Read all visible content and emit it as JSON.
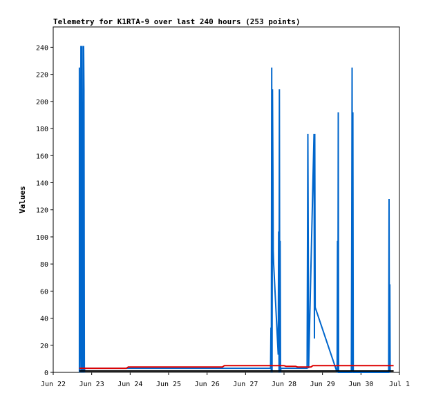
{
  "chart_data": {
    "type": "line",
    "title": "Telemetry for K1RTA-9 over last 240 hours (253 points)",
    "xlabel": "",
    "ylabel": "Values",
    "xlim": [
      "Jun 22",
      "Jul 1"
    ],
    "ylim": [
      0,
      255
    ],
    "grid": false,
    "legend": "none",
    "x_ticks": [
      "Jun 22",
      "Jun 23",
      "Jun 24",
      "Jun 25",
      "Jun 26",
      "Jun 27",
      "Jun 28",
      "Jun 29",
      "Jun 30",
      "Jul 1"
    ],
    "x_tick_days": [
      0,
      1,
      2,
      3,
      4,
      5,
      6,
      7,
      8,
      9
    ],
    "y_ticks": [
      0,
      20,
      40,
      60,
      80,
      100,
      120,
      140,
      160,
      180,
      200,
      220,
      240
    ],
    "series": [
      {
        "color": "#0066cc",
        "points": [
          [
            0.68,
            0
          ],
          [
            0.68,
            225
          ],
          [
            0.69,
            0
          ],
          [
            0.71,
            65
          ],
          [
            0.72,
            241
          ],
          [
            0.73,
            0
          ],
          [
            0.75,
            241
          ],
          [
            0.76,
            0
          ],
          [
            0.77,
            113
          ],
          [
            0.78,
            0
          ],
          [
            0.79,
            241
          ],
          [
            0.8,
            208
          ],
          [
            0.81,
            0
          ],
          [
            0.82,
            3
          ],
          [
            5.65,
            3
          ],
          [
            5.66,
            33
          ],
          [
            5.67,
            0
          ],
          [
            5.68,
            225
          ],
          [
            5.69,
            0
          ],
          [
            5.7,
            209
          ],
          [
            5.71,
            152
          ],
          [
            5.72,
            90
          ],
          [
            5.73,
            80
          ],
          [
            5.85,
            13
          ],
          [
            5.86,
            104
          ],
          [
            5.87,
            0
          ],
          [
            5.88,
            209
          ],
          [
            5.89,
            0
          ],
          [
            5.9,
            97
          ],
          [
            5.91,
            0
          ],
          [
            5.92,
            3
          ],
          [
            6.6,
            3
          ],
          [
            6.62,
            176
          ],
          [
            6.63,
            90
          ],
          [
            6.64,
            3
          ],
          [
            6.78,
            176
          ],
          [
            6.79,
            25
          ],
          [
            6.8,
            176
          ],
          [
            6.81,
            48
          ],
          [
            7.38,
            0
          ],
          [
            7.39,
            97
          ],
          [
            7.4,
            0
          ],
          [
            7.41,
            192
          ],
          [
            7.42,
            0
          ],
          [
            7.75,
            0
          ],
          [
            7.76,
            112
          ],
          [
            7.77,
            225
          ],
          [
            7.78,
            0
          ],
          [
            7.79,
            192
          ],
          [
            7.8,
            0
          ],
          [
            8.72,
            0
          ],
          [
            8.73,
            128
          ],
          [
            8.74,
            0
          ],
          [
            8.75,
            65
          ],
          [
            8.76,
            0
          ]
        ]
      },
      {
        "color": "#dd0000",
        "points": [
          [
            0.68,
            3
          ],
          [
            0.85,
            3
          ],
          [
            1.5,
            3
          ],
          [
            1.9,
            3
          ],
          [
            1.95,
            4
          ],
          [
            3.5,
            4
          ],
          [
            4.4,
            4
          ],
          [
            4.45,
            5
          ],
          [
            5.8,
            5
          ],
          [
            6.0,
            5
          ],
          [
            6.05,
            4.5
          ],
          [
            6.3,
            4.5
          ],
          [
            6.35,
            4
          ],
          [
            6.7,
            4
          ],
          [
            6.75,
            5
          ],
          [
            8.5,
            5
          ],
          [
            8.85,
            5
          ]
        ]
      },
      {
        "color": "#000000",
        "points": [
          [
            0.68,
            1
          ],
          [
            8.85,
            1
          ]
        ]
      }
    ]
  }
}
